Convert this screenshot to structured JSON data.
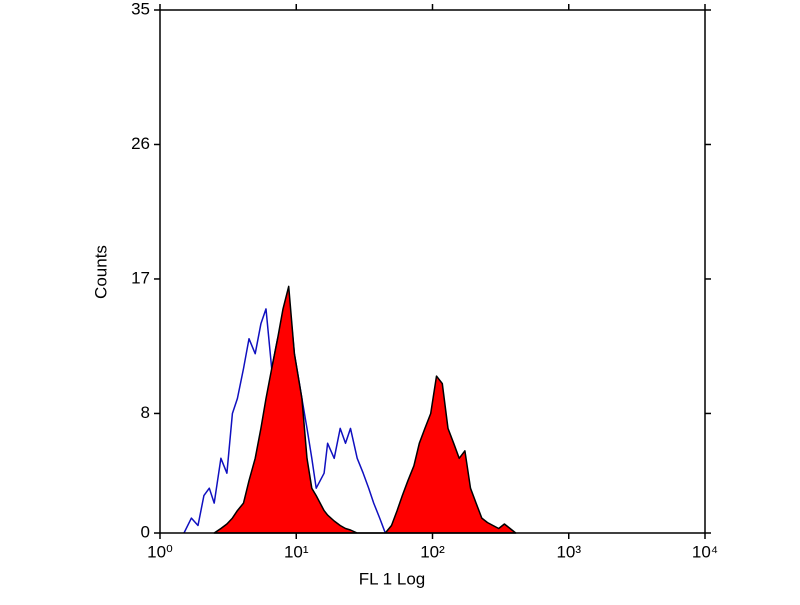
{
  "chart_data": {
    "type": "histogram-overlay",
    "xlabel": "FL 1  Log",
    "ylabel": "Counts",
    "xscale": "log",
    "xlim": [
      1,
      10000
    ],
    "xticks": [
      {
        "value": 1,
        "label": "10⁰"
      },
      {
        "value": 10,
        "label": "10¹"
      },
      {
        "value": 100,
        "label": "10²"
      },
      {
        "value": 1000,
        "label": "10³"
      },
      {
        "value": 10000,
        "label": "10⁴"
      }
    ],
    "ylim": [
      0,
      35
    ],
    "yticks": [
      0,
      8,
      17,
      26,
      35
    ],
    "series": [
      {
        "color": "#1010c0",
        "fill": false,
        "x": [
          1.5,
          1.7,
          1.9,
          2.1,
          2.3,
          2.5,
          2.8,
          3.1,
          3.4,
          3.7,
          4.1,
          4.5,
          5.0,
          5.5,
          6.0,
          6.6,
          7.3,
          8.0,
          8.8,
          9.7,
          11,
          12,
          13,
          14,
          16,
          17,
          19,
          21,
          23,
          25,
          28,
          31,
          34,
          37,
          41,
          45
        ],
        "values": [
          0,
          1,
          0.5,
          2.5,
          3,
          2,
          5,
          4,
          8,
          9,
          11,
          13,
          12,
          14,
          15,
          11,
          13,
          14,
          16,
          12,
          9,
          7,
          5,
          3,
          4,
          6,
          5,
          7,
          6,
          7,
          5,
          4,
          3,
          2,
          1,
          0
        ]
      },
      {
        "color": "#ff0000",
        "fill": true,
        "x": [
          2.5,
          2.8,
          3.1,
          3.4,
          3.7,
          4.1,
          4.5,
          5.0,
          5.5,
          6.0,
          6.6,
          7.3,
          8.0,
          8.8,
          9.7,
          11,
          12,
          13,
          14,
          16,
          17,
          19,
          21,
          23,
          25,
          28,
          45,
          50,
          55,
          60,
          66,
          73,
          80,
          88,
          97,
          107,
          118,
          130,
          143,
          157,
          173,
          190,
          209,
          230,
          253,
          278,
          306,
          337,
          371,
          408
        ],
        "values": [
          0,
          0.3,
          0.6,
          1,
          1.5,
          2,
          3.5,
          5,
          7,
          9,
          11,
          13,
          15,
          16.5,
          12,
          9,
          5,
          3,
          2.5,
          1.5,
          1.2,
          0.8,
          0.5,
          0.3,
          0.2,
          0,
          0,
          0.5,
          1.5,
          2.5,
          3.5,
          4.5,
          6,
          7,
          8,
          10.5,
          10,
          7,
          6,
          5,
          5.5,
          3,
          2,
          1,
          0.7,
          0.5,
          0.3,
          0.6,
          0.3,
          0
        ]
      }
    ]
  }
}
